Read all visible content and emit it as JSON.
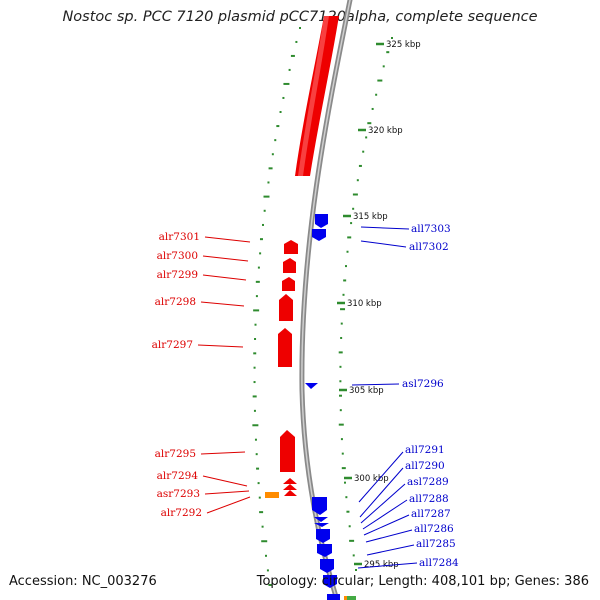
{
  "title": "Nostoc sp. PCC 7120 plasmid pCC7120alpha, complete sequence",
  "footer": {
    "accession": "Accession: NC_003276",
    "summary": "Topology: circular; Length: 408,101 bp; Genes: 386"
  },
  "colors": {
    "forward": "#ee0000",
    "reverse": "#0000ee",
    "rna": "#ff8c00",
    "gc_dots": "#2e8b2e",
    "backbone": "#888888",
    "other": "#44aa44"
  },
  "ticks": [
    "325 kbp",
    "320 kbp",
    "315 kbp",
    "310 kbp",
    "305 kbp",
    "300 kbp",
    "295 kbp"
  ],
  "genes_forward": [
    "alr7301",
    "alr7300",
    "alr7299",
    "alr7298",
    "alr7297",
    "alr7295",
    "alr7294",
    "asr7293",
    "alr7292"
  ],
  "genes_reverse": [
    "all7303",
    "all7302",
    "asl7296",
    "all7291",
    "all7290",
    "asl7289",
    "all7288",
    "all7287",
    "all7286",
    "all7285",
    "all7284"
  ]
}
